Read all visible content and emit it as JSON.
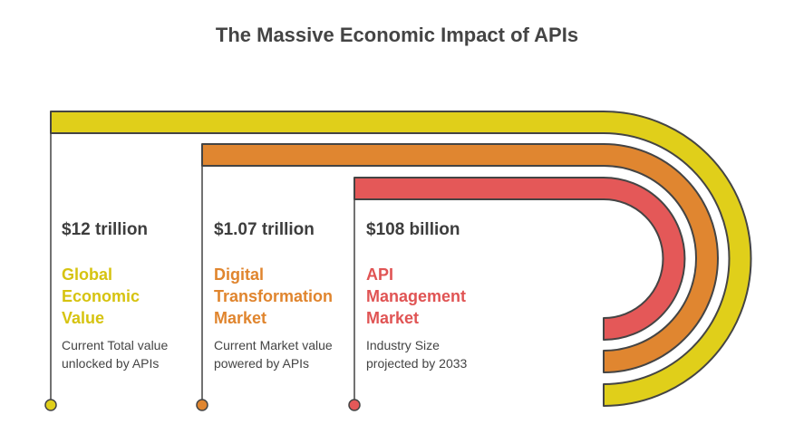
{
  "title": "The Massive Economic Impact of APIs",
  "colors": {
    "yellow": "#e0cf1a",
    "orange": "#e08630",
    "red": "#e45858",
    "outline": "#444444"
  },
  "items": [
    {
      "value": "$12 trillion",
      "label": "Global Economic Value",
      "label_lines": [
        "Global",
        "Economic",
        "Value"
      ],
      "description": "Current Total value unlocked by APIs",
      "desc_lines": [
        "Current Total value",
        "unlocked by APIs"
      ],
      "color": "#e0cf1a"
    },
    {
      "value": "$1.07 trillion",
      "label": "Digital Transformation Market",
      "label_lines": [
        "Digital",
        "Transformation",
        "Market"
      ],
      "description": "Current Market value powered by APIs",
      "desc_lines": [
        "Current Market value",
        "powered by APIs"
      ],
      "color": "#e08630"
    },
    {
      "value": "$108 billion",
      "label": "API Management Market",
      "label_lines": [
        "API",
        "Management",
        "Market"
      ],
      "description": "Industry Size projected by 2033",
      "desc_lines": [
        "Industry Size",
        "projected by 2033"
      ],
      "color": "#e45858"
    }
  ]
}
